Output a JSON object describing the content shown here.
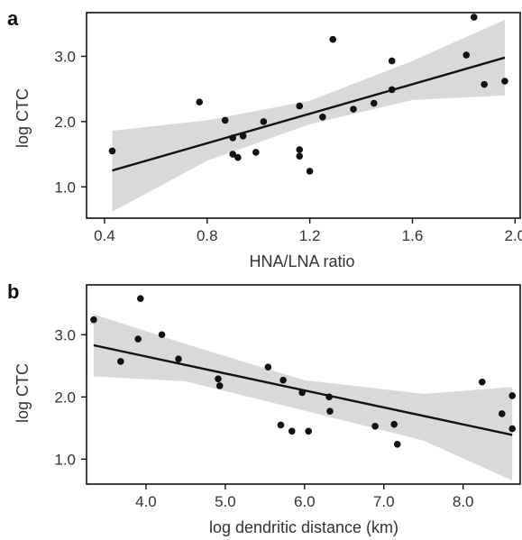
{
  "chart_data": [
    {
      "type": "scatter",
      "panel_label": "a",
      "xlabel": "HNA/LNA ratio",
      "ylabel": "log CTC",
      "xlim": [
        0.33,
        2.02
      ],
      "ylim": [
        0.52,
        3.67
      ],
      "xticks": [
        0.4,
        0.8,
        1.2,
        1.6,
        2.0
      ],
      "xtick_labels": [
        "0.4",
        "0.8",
        "1.2",
        "1.6",
        "2.0"
      ],
      "yticks": [
        1.0,
        2.0,
        3.0
      ],
      "ytick_labels": [
        "1.0",
        "2.0",
        "3.0"
      ],
      "grid": false,
      "colors": {
        "points": "#111111",
        "fit_line": "#111111",
        "confidence_band": "#d9d9d9"
      },
      "x": [
        0.43,
        0.77,
        0.87,
        0.9,
        0.9,
        0.92,
        0.94,
        0.99,
        1.02,
        1.16,
        1.16,
        1.16,
        1.2,
        1.25,
        1.29,
        1.37,
        1.45,
        1.52,
        1.52,
        1.81,
        1.84,
        1.88,
        1.96
      ],
      "y": [
        1.55,
        2.3,
        2.02,
        1.75,
        1.5,
        1.45,
        1.78,
        1.53,
        2.0,
        2.24,
        1.57,
        1.47,
        1.24,
        2.07,
        3.26,
        2.19,
        2.28,
        2.93,
        2.49,
        3.02,
        3.6,
        2.57,
        2.62
      ],
      "fit_line": {
        "x": [
          0.43,
          1.96
        ],
        "y": [
          1.25,
          2.98
        ]
      },
      "confidence_band": {
        "x": [
          0.43,
          0.8,
          1.2,
          1.6,
          1.96
        ],
        "lower": [
          0.62,
          1.4,
          1.96,
          2.33,
          2.4
        ],
        "upper": [
          1.86,
          2.02,
          2.32,
          2.93,
          3.56
        ]
      }
    },
    {
      "type": "scatter",
      "panel_label": "b",
      "xlabel": "log dendritic distance (km)",
      "ylabel": "log CTC",
      "xlim": [
        3.25,
        8.72
      ],
      "ylim": [
        0.6,
        3.8
      ],
      "xticks": [
        4.0,
        5.0,
        6.0,
        7.0,
        8.0
      ],
      "xtick_labels": [
        "4.0",
        "5.0",
        "6.0",
        "7.0",
        "8.0"
      ],
      "yticks": [
        1.0,
        2.0,
        3.0
      ],
      "ytick_labels": [
        "1.0",
        "2.0",
        "3.0"
      ],
      "grid": false,
      "colors": {
        "points": "#111111",
        "fit_line": "#111111",
        "confidence_band": "#d9d9d9"
      },
      "x": [
        3.34,
        3.68,
        3.9,
        3.93,
        4.2,
        4.41,
        4.91,
        4.93,
        5.54,
        5.73,
        5.7,
        5.84,
        5.97,
        6.05,
        6.31,
        6.32,
        6.89,
        7.13,
        7.17,
        8.24,
        8.49,
        8.62,
        8.62
      ],
      "y": [
        3.24,
        2.57,
        2.93,
        3.58,
        3.0,
        2.61,
        2.29,
        2.18,
        2.48,
        2.27,
        1.55,
        1.45,
        2.07,
        1.45,
        2.0,
        1.77,
        1.53,
        1.56,
        1.24,
        2.24,
        1.73,
        2.02,
        1.49
      ],
      "fit_line": {
        "x": [
          3.34,
          8.62
        ],
        "y": [
          2.83,
          1.39
        ]
      },
      "confidence_band": {
        "x": [
          3.34,
          4.5,
          6.0,
          7.5,
          8.62
        ],
        "lower": [
          2.33,
          2.25,
          1.78,
          1.3,
          0.66
        ],
        "upper": [
          3.33,
          2.85,
          2.27,
          2.05,
          2.16
        ]
      }
    }
  ]
}
